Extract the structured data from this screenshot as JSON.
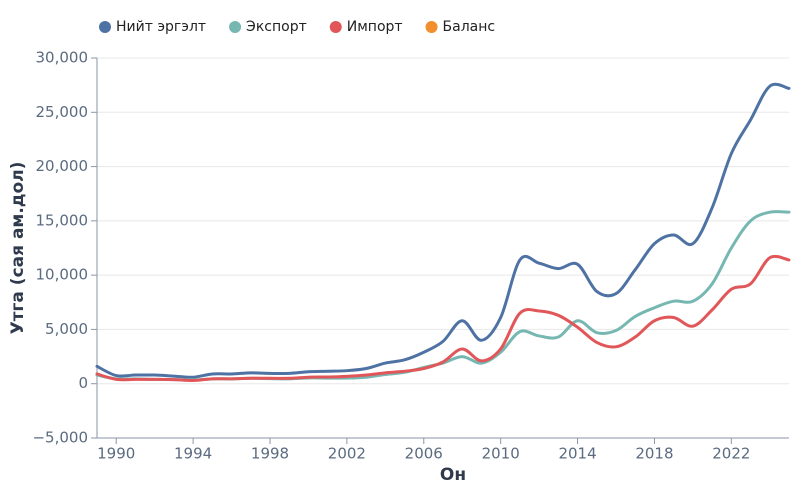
{
  "chart_data": {
    "type": "line",
    "x_label": "Он",
    "y_label": "Утга (сая ам.дол)",
    "x": [
      1989,
      1990,
      1991,
      1992,
      1993,
      1994,
      1995,
      1996,
      1997,
      1998,
      1999,
      2000,
      2001,
      2002,
      2003,
      2004,
      2005,
      2006,
      2007,
      2008,
      2009,
      2010,
      2011,
      2012,
      2013,
      2014,
      2015,
      2016,
      2017,
      2018,
      2019,
      2020,
      2021,
      2022,
      2023,
      2024,
      2025
    ],
    "series": [
      {
        "name": "Нийт эргэлт",
        "color": "#4e72a3",
        "values": [
          1600,
          750,
          800,
          800,
          700,
          600,
          900,
          900,
          1000,
          950,
          950,
          1100,
          1150,
          1200,
          1400,
          1900,
          2200,
          2900,
          3900,
          5800,
          4000,
          6100,
          11400,
          11100,
          10600,
          11000,
          8500,
          8300,
          10500,
          12900,
          13700,
          12900,
          16200,
          21200,
          24300,
          27400,
          27200
        ]
      },
      {
        "name": "Экспорт",
        "color": "#76b7b2",
        "values": [
          800,
          450,
          450,
          400,
          380,
          350,
          450,
          450,
          500,
          470,
          450,
          530,
          520,
          520,
          600,
          850,
          1050,
          1500,
          1900,
          2500,
          1900,
          2900,
          4800,
          4400,
          4300,
          5800,
          4700,
          4900,
          6200,
          7000,
          7600,
          7600,
          9200,
          12500,
          15000,
          15800,
          15800
        ]
      },
      {
        "name": "Импорт",
        "color": "#e15759",
        "values": [
          900,
          400,
          400,
          400,
          380,
          300,
          450,
          450,
          500,
          500,
          500,
          600,
          620,
          680,
          800,
          1000,
          1150,
          1400,
          2000,
          3200,
          2100,
          3200,
          6500,
          6700,
          6300,
          5200,
          3800,
          3400,
          4300,
          5800,
          6100,
          5300,
          6800,
          8700,
          9200,
          11600,
          11400
        ]
      },
      {
        "name": "Баланс",
        "color": "#f28e2b",
        "values": [
          null,
          null,
          null,
          null,
          null,
          null,
          null,
          null,
          null,
          null,
          null,
          null,
          null,
          null,
          null,
          null,
          null,
          null,
          null,
          null,
          null,
          null,
          null,
          null,
          null,
          null,
          null,
          null,
          null,
          null,
          null,
          null,
          null,
          null,
          null,
          null,
          null
        ]
      }
    ],
    "xlim": [
      1989,
      2025
    ],
    "xticks": [
      1990,
      1994,
      1998,
      2002,
      2006,
      2010,
      2014,
      2018,
      2022
    ],
    "ylim": [
      -5000,
      30000
    ],
    "yticks": [
      {
        "value": -5000,
        "label": "−5,000"
      },
      0,
      {
        "value": 5000,
        "label": "5,000"
      },
      {
        "value": 10000,
        "label": "10,000"
      },
      {
        "value": 15000,
        "label": "15,000"
      },
      {
        "value": 20000,
        "label": "20,000"
      },
      {
        "value": 25000,
        "label": "25,000"
      },
      {
        "value": 30000,
        "label": "30,000"
      }
    ],
    "grid": true,
    "legend": "top"
  }
}
